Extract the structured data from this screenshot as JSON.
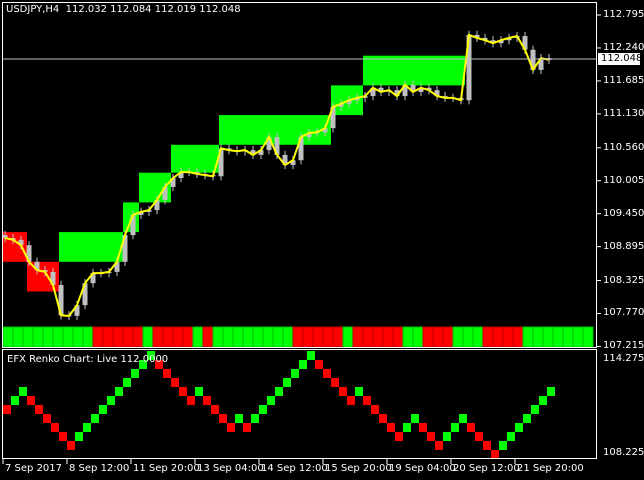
{
  "header": {
    "symbol_info": "USDJPY,H4  112.032 112.084 112.019 112.048"
  },
  "colors": {
    "up_box": "#00ff00",
    "down_box": "#ff0000",
    "line": "#ffff00",
    "candle": "#c0c0c0",
    "background": "#000000",
    "frame": "#ffffff"
  },
  "price_axis": {
    "labels": [
      "112.795",
      "112.240",
      "111.685",
      "111.130",
      "110.560",
      "110.005",
      "109.450",
      "108.895",
      "108.325",
      "107.770",
      "107.215"
    ],
    "current_price": "112.048"
  },
  "main_chart": {
    "closes": [
      109.04,
      109.01,
      108.92,
      108.64,
      108.5,
      108.47,
      108.25,
      107.74,
      107.73,
      107.91,
      108.28,
      108.45,
      108.45,
      108.47,
      108.64,
      109.09,
      109.43,
      109.48,
      109.51,
      109.68,
      109.9,
      110.05,
      110.15,
      110.15,
      110.12,
      110.1,
      110.08,
      110.55,
      110.52,
      110.5,
      110.52,
      110.44,
      110.52,
      110.74,
      110.44,
      110.27,
      110.35,
      110.74,
      110.81,
      110.82,
      110.89,
      111.25,
      111.3,
      111.36,
      111.4,
      111.43,
      111.57,
      111.5,
      111.53,
      111.43,
      111.62,
      111.5,
      111.57,
      111.53,
      111.43,
      111.4,
      111.4,
      111.36,
      112.46,
      112.41,
      112.37,
      112.32,
      112.37,
      112.41,
      112.44,
      112.21,
      111.87,
      112.07,
      112.04
    ],
    "renko_boxes": [
      {
        "dir": "down",
        "low": 108.64,
        "high": 109.14
      },
      {
        "dir": "down",
        "low": 108.14,
        "high": 108.64
      },
      {
        "dir": "up",
        "low": 108.64,
        "high": 109.14
      },
      {
        "dir": "up",
        "low": 109.14,
        "high": 109.64
      },
      {
        "dir": "up",
        "low": 109.64,
        "high": 110.14
      },
      {
        "dir": "up",
        "low": 110.14,
        "high": 110.61
      },
      {
        "dir": "up",
        "low": 110.61,
        "high": 111.11
      },
      {
        "dir": "up",
        "low": 111.11,
        "high": 111.61
      },
      {
        "dir": "up",
        "low": 111.61,
        "high": 112.11
      }
    ],
    "trend_strip": [
      [
        "up",
        9
      ],
      [
        "down",
        5
      ],
      [
        "up",
        1
      ],
      [
        "down",
        4
      ],
      [
        "up",
        1
      ],
      [
        "down",
        1
      ],
      [
        "up",
        8
      ],
      [
        "down",
        5
      ],
      [
        "up",
        1
      ],
      [
        "down",
        5
      ],
      [
        "up",
        2
      ],
      [
        "down",
        3
      ],
      [
        "up",
        3
      ],
      [
        "down",
        4
      ],
      [
        "up",
        7
      ]
    ]
  },
  "sub_window": {
    "title": "EFX Renko Chart: Live 112.0000",
    "scale_max": "114.275",
    "scale_min": "108.225",
    "brick_dirs": [
      "down",
      "up",
      "up",
      "down",
      "down",
      "down",
      "down",
      "down",
      "down",
      "up",
      "up",
      "up",
      "up",
      "up",
      "up",
      "up",
      "up",
      "up",
      "up",
      "down",
      "down",
      "down",
      "down",
      "down",
      "up",
      "down",
      "down",
      "down",
      "down",
      "up",
      "down",
      "up",
      "up",
      "up",
      "up",
      "up",
      "up",
      "up",
      "up",
      "down",
      "down",
      "down",
      "down",
      "down",
      "up",
      "down",
      "down",
      "down",
      "down",
      "down",
      "up",
      "up",
      "down",
      "down",
      "down",
      "up",
      "up",
      "up",
      "down",
      "down",
      "down",
      "down",
      "up",
      "up",
      "up",
      "up",
      "up",
      "up",
      "up"
    ],
    "brick_levels": [
      0,
      1,
      2,
      1,
      0,
      -1,
      -2,
      -3,
      -4,
      -3,
      -2,
      -1,
      0,
      1,
      2,
      3,
      4,
      5,
      6,
      5,
      4,
      3,
      2,
      1,
      2,
      1,
      0,
      -1,
      -2,
      -1,
      -2,
      -1,
      0,
      1,
      2,
      3,
      4,
      5,
      6,
      5,
      4,
      3,
      2,
      1,
      2,
      1,
      0,
      -1,
      -2,
      -3,
      -2,
      -1,
      -2,
      -3,
      -4,
      -3,
      -2,
      -1,
      -2,
      -3,
      -4,
      -5,
      -4,
      -3,
      -2,
      -1,
      0,
      1,
      2
    ]
  },
  "time_axis": {
    "labels": [
      "7 Sep 2017",
      "8 Sep 12:00",
      "11 Sep 20:00",
      "13 Sep 04:00",
      "14 Sep 12:00",
      "15 Sep 20:00",
      "19 Sep 04:00",
      "20 Sep 12:00",
      "21 Sep 20:00"
    ]
  }
}
